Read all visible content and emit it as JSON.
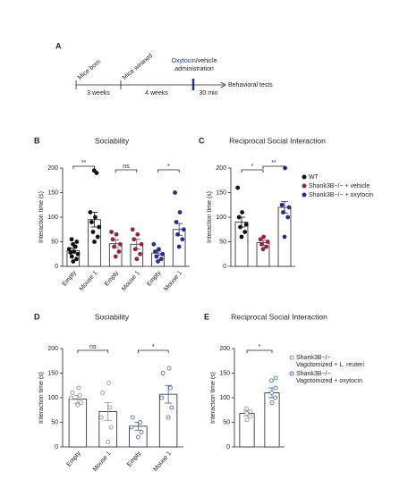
{
  "timeline": {
    "panel": "A",
    "events": [
      "Mice born",
      "Mice weaned"
    ],
    "treatment": "Oxytocin",
    "treatment_suffix": "/vehicle",
    "treatment_line2": "administration",
    "intervals": [
      "3 weeks",
      "4 weeks",
      "30 min"
    ],
    "end": "Behavioral tests"
  },
  "chart_data": [
    {
      "type": "bar",
      "panel": "B",
      "title": "Sociability",
      "ylabel": "Interaction time (s)",
      "categories": [
        "Empty",
        "Mouse 1",
        "Empty",
        "Mouse 1",
        "Empty",
        "Mouse 1"
      ],
      "values": [
        32,
        95,
        46,
        45,
        27,
        75
      ],
      "errors": [
        5,
        15,
        8,
        10,
        4,
        12
      ],
      "colors": [
        "#111111",
        "#111111",
        "#8a2846",
        "#8a2846",
        "#2a2f86",
        "#2a2f86"
      ],
      "marker": "filled",
      "points": [
        [
          10,
          15,
          20,
          25,
          28,
          30,
          35,
          40,
          45,
          50,
          55
        ],
        [
          50,
          60,
          70,
          80,
          90,
          100,
          110,
          190,
          195
        ],
        [
          20,
          30,
          40,
          45,
          55,
          65,
          70
        ],
        [
          15,
          25,
          35,
          45,
          55,
          65,
          75
        ],
        [
          10,
          15,
          20,
          25,
          30,
          35,
          45
        ],
        [
          40,
          55,
          65,
          75,
          90,
          110,
          150
        ]
      ],
      "annotations": [
        {
          "label": "**",
          "compare": [
            0,
            1
          ]
        },
        {
          "label": "ns",
          "compare": [
            2,
            3
          ]
        },
        {
          "label": "*",
          "compare": [
            4,
            5
          ]
        }
      ],
      "ylim": [
        0,
        200
      ],
      "yticks": [
        0,
        50,
        100,
        150,
        200
      ]
    },
    {
      "type": "bar",
      "panel": "C",
      "title": "Reciprocal Social Interaction",
      "ylabel": "Interaction time (s)",
      "categories": [
        null,
        null,
        null
      ],
      "values": [
        90,
        48,
        120
      ],
      "errors": [
        10,
        5,
        12
      ],
      "colors": [
        "#111111",
        "#8a2846",
        "#2a2f86"
      ],
      "marker": "filled",
      "points": [
        [
          60,
          70,
          80,
          85,
          100,
          110,
          160
        ],
        [
          35,
          40,
          45,
          50,
          55,
          60
        ],
        [
          60,
          100,
          110,
          120,
          125,
          200
        ]
      ],
      "legend": [
        {
          "name": [
            "WT"
          ],
          "color": "#111111"
        },
        {
          "name": [
            "Shank3B−/− + vehicle"
          ],
          "color": "#8a2846"
        },
        {
          "name": [
            "Shank3B−/− + oxytocin"
          ],
          "color": "#2a2f86"
        }
      ],
      "annotations": [
        {
          "label": "*",
          "compare": [
            0,
            1
          ]
        },
        {
          "label": "**",
          "compare": [
            1,
            2
          ]
        }
      ],
      "ylim": [
        0,
        200
      ],
      "yticks": [
        0,
        50,
        100,
        150,
        200
      ]
    },
    {
      "type": "bar",
      "panel": "D",
      "title": "Sociability",
      "ylabel": "Interaction time (s)",
      "categories": [
        "Empty",
        "Mouse 1",
        "Empty",
        "Mouse 1"
      ],
      "values": [
        97,
        72,
        42,
        107
      ],
      "errors": [
        8,
        18,
        8,
        18
      ],
      "colors": [
        "#8c8c8c",
        "#8c8c8c",
        "#4a5aa8",
        "#4a5aa8"
      ],
      "marker": "open",
      "points": [
        [
          85,
          90,
          100,
          105,
          110,
          120
        ],
        [
          10,
          40,
          60,
          80,
          110,
          130
        ],
        [
          20,
          30,
          40,
          50,
          60
        ],
        [
          60,
          80,
          100,
          120,
          150,
          160
        ]
      ],
      "annotations": [
        {
          "label": "ns",
          "compare": [
            0,
            1
          ]
        },
        {
          "label": "*",
          "compare": [
            2,
            3
          ]
        }
      ],
      "ylim": [
        0,
        200
      ],
      "yticks": [
        0,
        50,
        100,
        150,
        200
      ]
    },
    {
      "type": "bar",
      "panel": "E",
      "title": "Reciprocal Social Interaction",
      "ylabel": "Interaction time (s)",
      "categories": [
        null,
        null
      ],
      "values": [
        68,
        110
      ],
      "errors": [
        5,
        10
      ],
      "colors": [
        "#8c8c8c",
        "#4a5aa8"
      ],
      "marker": "open",
      "points": [
        [
          55,
          62,
          68,
          72,
          78
        ],
        [
          90,
          100,
          110,
          120,
          135,
          140
        ]
      ],
      "legend": [
        {
          "name": [
            "Shank3B−/−",
            "Vagotomized + L. reuteri"
          ],
          "color": "#8c8c8c"
        },
        {
          "name": [
            "Shank3B−/−",
            "Vagotomized + oxytocin"
          ],
          "color": "#4a5aa8"
        }
      ],
      "annotations": [
        {
          "label": "*",
          "compare": [
            0,
            1
          ]
        }
      ],
      "ylim": [
        0,
        200
      ],
      "yticks": [
        0,
        50,
        100,
        150,
        200
      ]
    }
  ]
}
